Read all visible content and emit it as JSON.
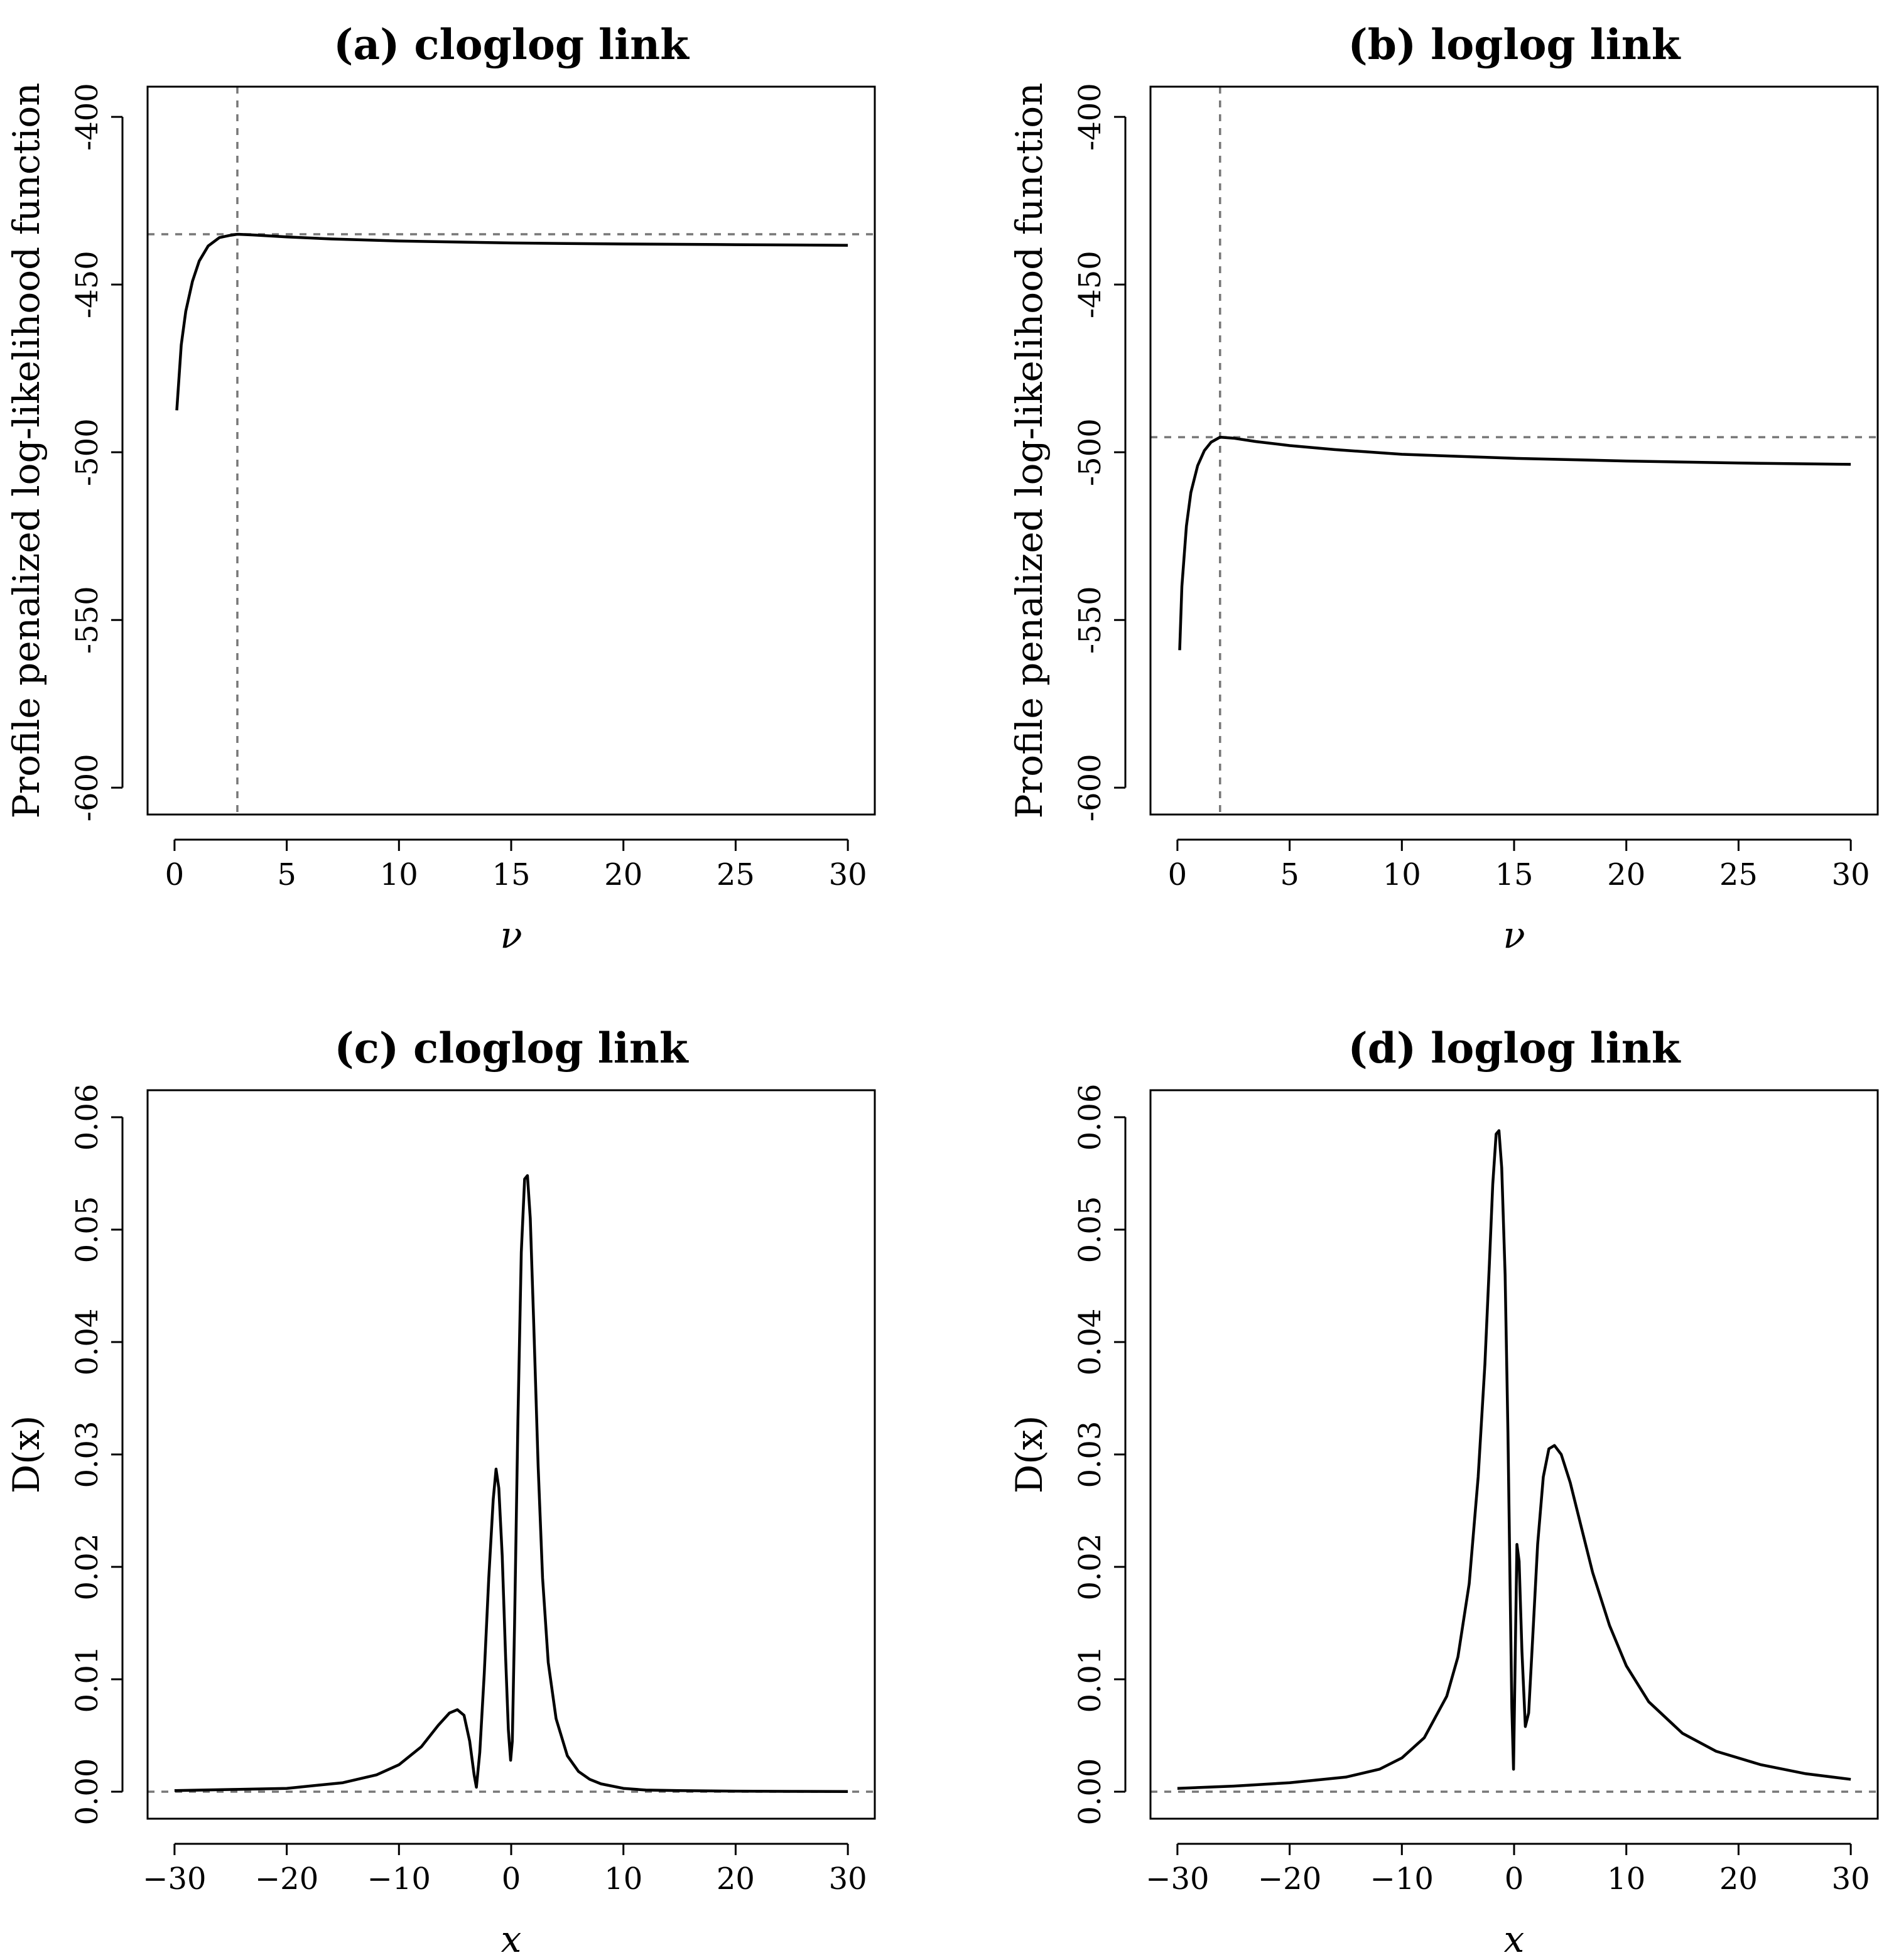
{
  "chart_data": [
    {
      "type": "line",
      "title": "(a) cloglog link",
      "xlabel": "ν",
      "ylabel": "Profile penalized log-likelihood function",
      "xlim": [
        -1.2,
        31.2
      ],
      "ylim": [
        -608,
        -391
      ],
      "xticks": [
        0,
        5,
        10,
        15,
        20,
        25,
        30
      ],
      "xtick_labels": [
        "0",
        "5",
        "10",
        "15",
        "20",
        "25",
        "30"
      ],
      "yticks": [
        -600,
        -550,
        -500,
        -450,
        -400
      ],
      "ytick_labels": [
        "-600",
        "-550",
        "-500",
        "-450",
        "-400"
      ],
      "reference_lines": {
        "h": -435,
        "v": 2.8
      },
      "series": [
        {
          "name": "profile",
          "x": [
            0.1,
            0.3,
            0.5,
            0.8,
            1.1,
            1.5,
            2.0,
            2.5,
            2.8,
            3.5,
            5,
            7,
            10,
            15,
            20,
            25,
            30
          ],
          "y": [
            -487.5,
            -468,
            -458,
            -449,
            -443,
            -438.5,
            -436,
            -435.3,
            -435,
            -435.2,
            -435.8,
            -436.4,
            -437,
            -437.6,
            -437.9,
            -438.1,
            -438.3
          ]
        }
      ]
    },
    {
      "type": "line",
      "title": "(b) loglog link",
      "xlabel": "ν",
      "ylabel": "Profile penalized log-likelihood function",
      "xlim": [
        -1.2,
        31.2
      ],
      "ylim": [
        -608,
        -391
      ],
      "xticks": [
        0,
        5,
        10,
        15,
        20,
        25,
        30
      ],
      "xtick_labels": [
        "0",
        "5",
        "10",
        "15",
        "20",
        "25",
        "30"
      ],
      "yticks": [
        -600,
        -550,
        -500,
        -450,
        -400
      ],
      "ytick_labels": [
        "-600",
        "-550",
        "-500",
        "-450",
        "-400"
      ],
      "reference_lines": {
        "h": -495.5,
        "v": 1.9
      },
      "series": [
        {
          "name": "profile",
          "x": [
            0.1,
            0.2,
            0.4,
            0.6,
            0.9,
            1.2,
            1.5,
            1.9,
            2.5,
            3.5,
            5,
            7,
            10,
            15,
            20,
            25,
            30
          ],
          "y": [
            -559,
            -540,
            -522,
            -512,
            -504,
            -499.5,
            -497,
            -495.5,
            -495.8,
            -496.8,
            -498,
            -499.2,
            -500.6,
            -501.8,
            -502.6,
            -503.2,
            -503.6
          ]
        }
      ]
    },
    {
      "type": "line",
      "title": "(c) cloglog link",
      "xlabel": "x",
      "ylabel": "D(x)",
      "xlim": [
        -32.4,
        32.4
      ],
      "ylim": [
        -0.0024,
        0.0624
      ],
      "xticks": [
        -30,
        -20,
        -10,
        0,
        10,
        20,
        30
      ],
      "xtick_labels": [
        "−30",
        "−20",
        "−10",
        "0",
        "10",
        "20",
        "30"
      ],
      "yticks": [
        0,
        0.01,
        0.02,
        0.03,
        0.04,
        0.05,
        0.06
      ],
      "ytick_labels": [
        "0.00",
        "0.01",
        "0.02",
        "0.03",
        "0.04",
        "0.05",
        "0.06"
      ],
      "reference_lines": {
        "h": 0
      },
      "series": [
        {
          "name": "D(x)",
          "x": [
            -30,
            -25,
            -20,
            -15,
            -12,
            -10,
            -8,
            -6.5,
            -5.5,
            -4.8,
            -4.2,
            -3.7,
            -3.3,
            -3.1,
            -2.8,
            -2.4,
            -2.0,
            -1.6,
            -1.35,
            -1.1,
            -0.8,
            -0.5,
            -0.25,
            -0.05,
            0.1,
            0.3,
            0.6,
            0.9,
            1.2,
            1.45,
            1.7,
            2.0,
            2.4,
            2.8,
            3.3,
            4.0,
            5.0,
            6.0,
            7.0,
            8.0,
            10,
            12,
            15,
            20,
            25,
            30
          ],
          "y": [
            0.0001,
            0.0002,
            0.0003,
            0.0008,
            0.0015,
            0.0024,
            0.004,
            0.0059,
            0.007,
            0.0073,
            0.0068,
            0.0045,
            0.0015,
            0.0004,
            0.0035,
            0.0105,
            0.019,
            0.026,
            0.0287,
            0.027,
            0.021,
            0.012,
            0.0055,
            0.0028,
            0.0045,
            0.015,
            0.033,
            0.048,
            0.0545,
            0.0548,
            0.051,
            0.042,
            0.029,
            0.019,
            0.0115,
            0.0065,
            0.0032,
            0.0018,
            0.0011,
            0.0007,
            0.0003,
            0.00015,
            0.0001,
            5e-05,
            3e-05,
            2e-05
          ]
        }
      ]
    },
    {
      "type": "line",
      "title": "(d) loglog link",
      "xlabel": "x",
      "ylabel": "D(x)",
      "xlim": [
        -32.4,
        32.4
      ],
      "ylim": [
        -0.0024,
        0.0624
      ],
      "xticks": [
        -30,
        -20,
        -10,
        0,
        10,
        20,
        30
      ],
      "xtick_labels": [
        "−30",
        "−20",
        "−10",
        "0",
        "10",
        "20",
        "30"
      ],
      "yticks": [
        0,
        0.01,
        0.02,
        0.03,
        0.04,
        0.05,
        0.06
      ],
      "ytick_labels": [
        "0.00",
        "0.01",
        "0.02",
        "0.03",
        "0.04",
        "0.05",
        "0.06"
      ],
      "reference_lines": {
        "h": 0
      },
      "series": [
        {
          "name": "D(x)",
          "x": [
            -30,
            -25,
            -20,
            -15,
            -12,
            -10,
            -8,
            -6,
            -5,
            -4,
            -3.2,
            -2.6,
            -2.2,
            -1.9,
            -1.6,
            -1.35,
            -1.1,
            -0.8,
            -0.55,
            -0.35,
            -0.2,
            -0.05,
            0.1,
            0.25,
            0.45,
            0.7,
            1.0,
            1.3,
            1.7,
            2.1,
            2.6,
            3.1,
            3.6,
            4.2,
            5.0,
            6.0,
            7.0,
            8.5,
            10,
            12,
            15,
            18,
            22,
            26,
            30
          ],
          "y": [
            0.0003,
            0.0005,
            0.0008,
            0.0013,
            0.002,
            0.003,
            0.0048,
            0.0085,
            0.012,
            0.0185,
            0.028,
            0.038,
            0.047,
            0.054,
            0.0585,
            0.0588,
            0.0555,
            0.046,
            0.032,
            0.018,
            0.0075,
            0.002,
            0.012,
            0.022,
            0.0205,
            0.0125,
            0.0058,
            0.007,
            0.0145,
            0.022,
            0.028,
            0.0305,
            0.0308,
            0.03,
            0.0275,
            0.0235,
            0.0195,
            0.0148,
            0.0112,
            0.008,
            0.0052,
            0.0036,
            0.0024,
            0.0016,
            0.0011
          ]
        }
      ]
    }
  ]
}
